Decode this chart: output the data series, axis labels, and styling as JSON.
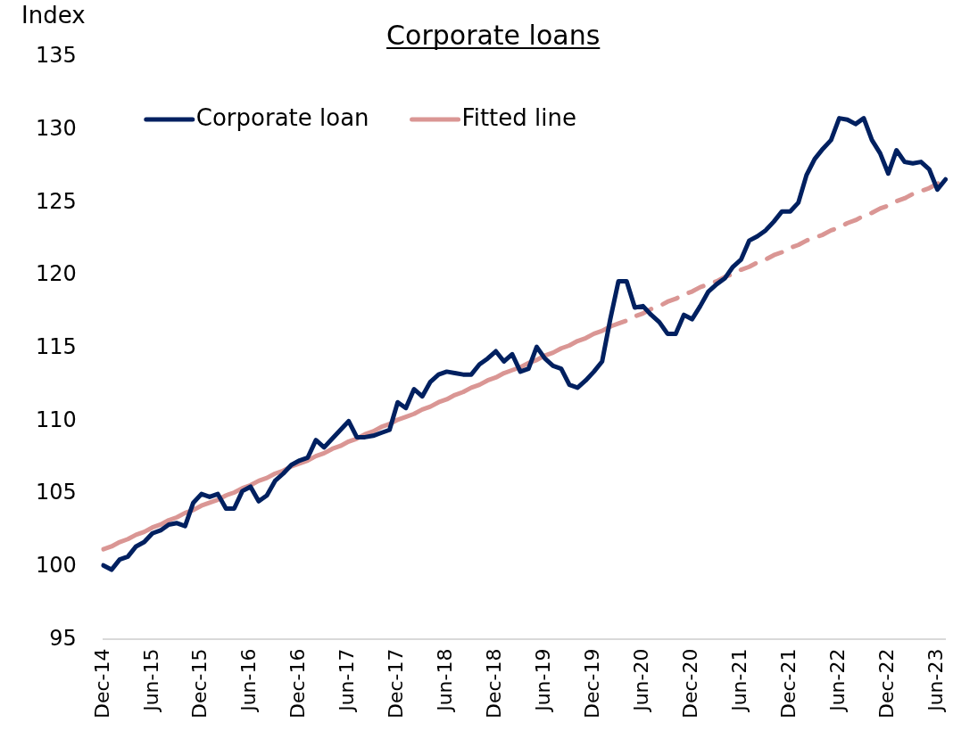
{
  "chart_data": {
    "type": "line",
    "title": "Corporate loans",
    "ylabel": "Index",
    "categories": [
      "Dec-14",
      null,
      null,
      null,
      null,
      null,
      "Jun-15",
      null,
      null,
      null,
      null,
      null,
      "Dec-15",
      null,
      null,
      null,
      null,
      null,
      "Jun-16",
      null,
      null,
      null,
      null,
      null,
      "Dec-16",
      null,
      null,
      null,
      null,
      null,
      "Jun-17",
      null,
      null,
      null,
      null,
      null,
      "Dec-17",
      null,
      null,
      null,
      null,
      null,
      "Jun-18",
      null,
      null,
      null,
      null,
      null,
      "Dec-18",
      null,
      null,
      null,
      null,
      null,
      "Jun-19",
      null,
      null,
      null,
      null,
      null,
      "Dec-19",
      null,
      null,
      null,
      null,
      null,
      "Jun-20",
      null,
      null,
      null,
      null,
      null,
      "Dec-20",
      null,
      null,
      null,
      null,
      null,
      "Jun-21",
      null,
      null,
      null,
      null,
      null,
      "Dec-21",
      null,
      null,
      null,
      null,
      null,
      "Jun-22",
      null,
      null,
      null,
      null,
      null,
      "Dec-22",
      null,
      null,
      null,
      null,
      null,
      "Jun-23",
      null
    ],
    "series": [
      {
        "name": "Corporate loan",
        "color": "#002060",
        "line_style": "solid",
        "values": [
          100.1,
          99.8,
          100.5,
          100.7,
          101.4,
          101.7,
          102.3,
          102.5,
          102.9,
          103.0,
          102.8,
          104.4,
          105.0,
          104.8,
          105.0,
          104.0,
          104.0,
          105.2,
          105.5,
          104.5,
          104.9,
          105.9,
          106.4,
          107.0,
          107.3,
          107.5,
          108.7,
          108.2,
          108.8,
          109.4,
          110.0,
          108.9,
          108.9,
          109.0,
          109.2,
          109.4,
          111.3,
          110.9,
          112.2,
          111.7,
          112.7,
          113.2,
          113.4,
          113.3,
          113.2,
          113.2,
          113.9,
          114.3,
          114.8,
          114.1,
          114.6,
          113.4,
          113.6,
          115.1,
          114.3,
          113.8,
          113.6,
          112.5,
          112.3,
          112.8,
          113.4,
          114.1,
          117.0,
          119.6,
          119.6,
          117.8,
          117.9,
          117.3,
          116.8,
          116.0,
          116.0,
          117.3,
          117.0,
          117.9,
          118.9,
          119.4,
          119.8,
          120.6,
          121.1,
          122.4,
          122.7,
          123.1,
          123.7,
          124.4,
          124.4,
          125.0,
          126.9,
          128.0,
          128.7,
          129.3,
          130.8,
          130.7,
          130.4,
          130.8,
          129.3,
          128.4,
          127.0,
          128.6,
          127.8,
          127.7,
          127.8,
          127.3,
          125.9,
          126.6
        ]
      },
      {
        "name": "Fitted line",
        "color": "#da9694",
        "line_style": "solid",
        "values": [
          101.2,
          101.4,
          101.7,
          101.9,
          102.2,
          102.4,
          102.7,
          102.9,
          103.2,
          103.4,
          103.7,
          103.9,
          104.2,
          104.4,
          104.6,
          104.9,
          105.1,
          105.4,
          105.6,
          105.9,
          106.1,
          106.4,
          106.6,
          106.9,
          107.1,
          107.3,
          107.6,
          107.8,
          108.1,
          108.3,
          108.6,
          108.8,
          109.1,
          109.3,
          109.6,
          109.8,
          110.1,
          110.3,
          110.5,
          110.8,
          111.0,
          111.3,
          111.5,
          111.8,
          112.0,
          112.3,
          112.5,
          112.8,
          113.0,
          113.3,
          113.5,
          113.7,
          114.0,
          114.2,
          114.5,
          114.7,
          115.0,
          115.2,
          115.5,
          115.7,
          116.0,
          116.2,
          116.5,
          null,
          null,
          null,
          null,
          null,
          null,
          null,
          null,
          null,
          null,
          null,
          null,
          null,
          null,
          null,
          null,
          null,
          null,
          null,
          null,
          null,
          null,
          null,
          null,
          null,
          null,
          null,
          null,
          null,
          null,
          null,
          null,
          null,
          null,
          null,
          null,
          null,
          null,
          null,
          null,
          null
        ]
      },
      {
        "color": "#da9694",
        "line_style": "dashed",
        "values": [
          null,
          null,
          null,
          null,
          null,
          null,
          null,
          null,
          null,
          null,
          null,
          null,
          null,
          null,
          null,
          null,
          null,
          null,
          null,
          null,
          null,
          null,
          null,
          null,
          null,
          null,
          null,
          null,
          null,
          null,
          null,
          null,
          null,
          null,
          null,
          null,
          null,
          null,
          null,
          null,
          null,
          null,
          null,
          null,
          null,
          null,
          null,
          null,
          null,
          null,
          null,
          null,
          null,
          null,
          null,
          null,
          null,
          null,
          null,
          null,
          null,
          null,
          116.5,
          116.7,
          116.9,
          117.2,
          117.4,
          117.7,
          117.9,
          118.2,
          118.4,
          118.7,
          118.9,
          119.2,
          119.4,
          119.6,
          119.9,
          120.1,
          120.4,
          120.6,
          120.9,
          121.1,
          121.4,
          121.6,
          121.9,
          122.1,
          122.4,
          122.6,
          122.8,
          123.1,
          123.3,
          123.6,
          123.8,
          124.1,
          124.3,
          124.6,
          124.8,
          125.1,
          125.3,
          125.6,
          125.8,
          126.0,
          126.3,
          126.5
        ]
      }
    ],
    "ylim": [
      95,
      135
    ],
    "yticks": [
      95,
      100,
      105,
      110,
      115,
      120,
      125,
      130,
      135
    ],
    "grid": false,
    "legend": "top left",
    "marker": "none"
  }
}
